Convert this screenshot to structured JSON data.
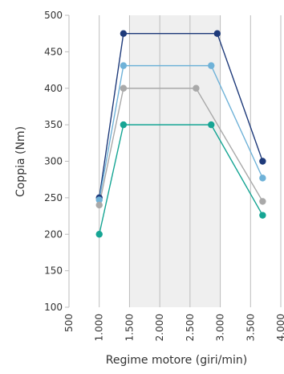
{
  "chart_data": {
    "type": "line",
    "xlabel": "Regime motore (giri/min)",
    "ylabel": "Coppia (Nm)",
    "xlim": [
      500,
      4000
    ],
    "ylim": [
      100,
      500
    ],
    "x_ticks": [
      500,
      1000,
      1500,
      2000,
      2500,
      3000,
      3500,
      4000
    ],
    "x_tick_labels": [
      "500",
      "1.000",
      "1.500",
      "2.000",
      "2.500",
      "3.000",
      "3.500",
      "4.000"
    ],
    "y_ticks": [
      100,
      150,
      200,
      250,
      300,
      350,
      400,
      450,
      500
    ],
    "y_tick_labels": [
      "100",
      "150",
      "200",
      "250",
      "300",
      "350",
      "400",
      "450",
      "500"
    ],
    "grid": "vertical",
    "shaded_band": {
      "x_from": 1500,
      "x_to": 3000,
      "color": "#efefef"
    },
    "series": [
      {
        "color": "#1e3a7a",
        "points": [
          [
            1000,
            250
          ],
          [
            1400,
            475
          ],
          [
            2950,
            475
          ],
          [
            3700,
            300
          ]
        ]
      },
      {
        "color": "#6fb2d8",
        "points": [
          [
            1000,
            247
          ],
          [
            1400,
            431
          ],
          [
            2850,
            431
          ],
          [
            3700,
            277
          ]
        ]
      },
      {
        "color": "#a9a9a9",
        "points": [
          [
            1000,
            240
          ],
          [
            1400,
            400
          ],
          [
            2600,
            400
          ],
          [
            3700,
            245
          ]
        ]
      },
      {
        "color": "#16a594",
        "points": [
          [
            1000,
            200
          ],
          [
            1400,
            350
          ],
          [
            2850,
            350
          ],
          [
            3700,
            226
          ]
        ]
      }
    ]
  }
}
